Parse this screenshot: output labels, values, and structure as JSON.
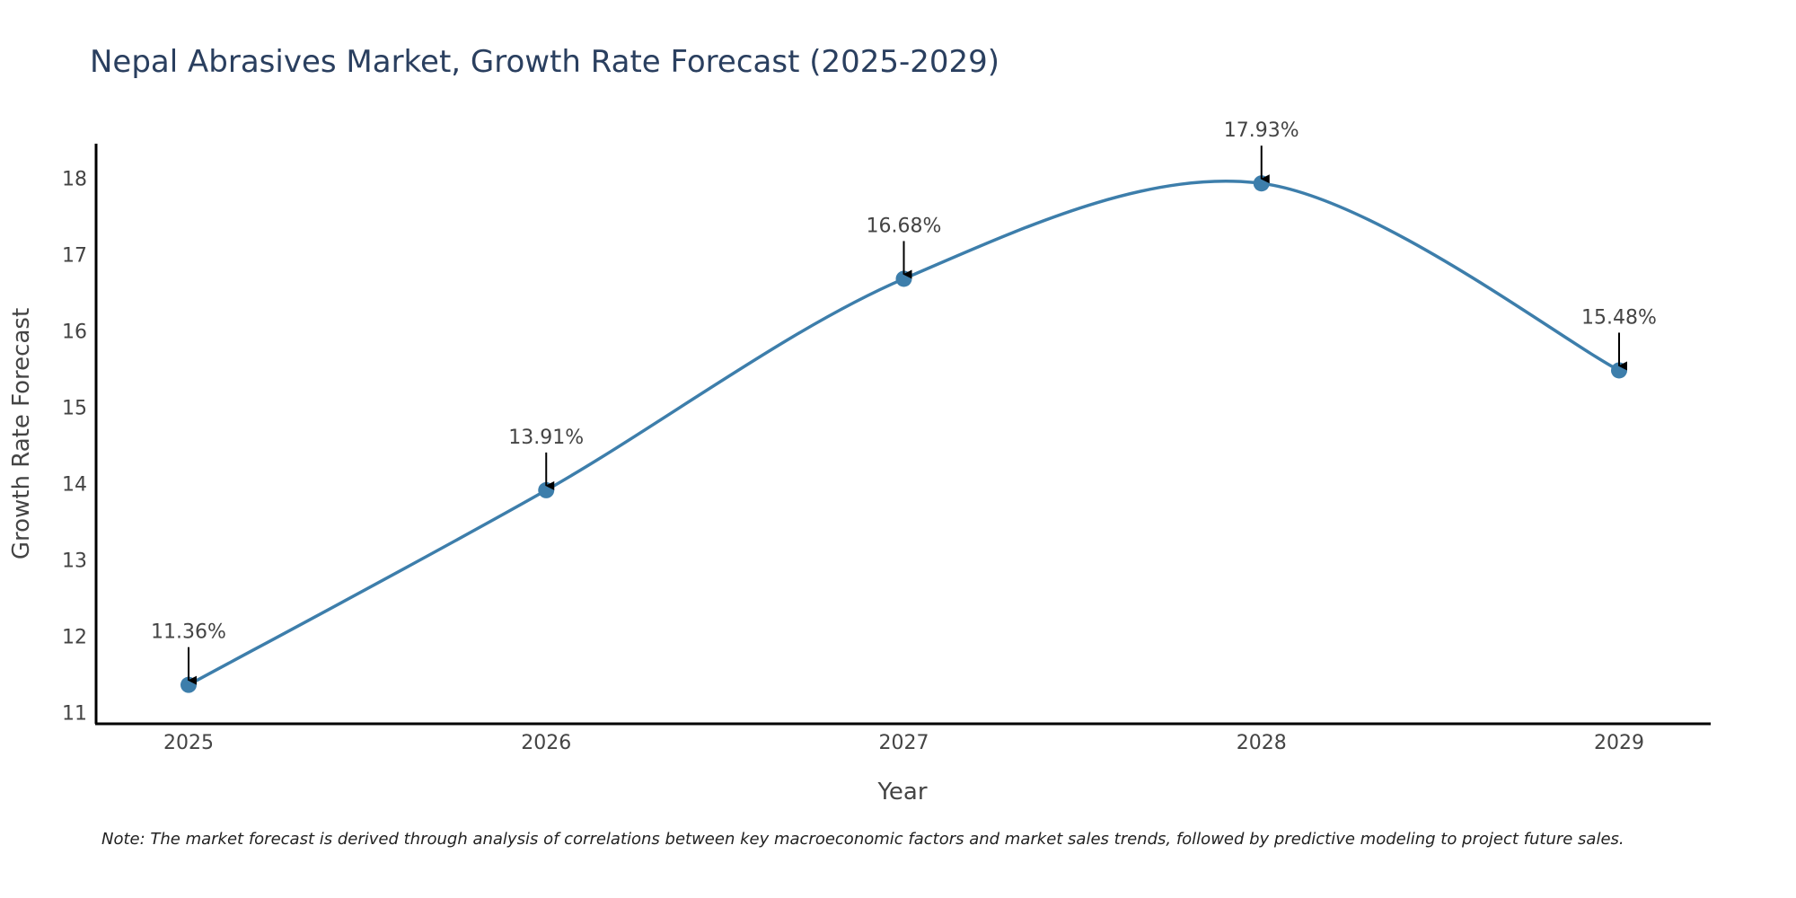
{
  "chart_data": {
    "type": "line",
    "title": "Nepal Abrasives Market, Growth Rate Forecast (2025-2029)",
    "xlabel": "Year",
    "ylabel": "Growth Rate Forecast",
    "categories": [
      "2025",
      "2026",
      "2027",
      "2028",
      "2029"
    ],
    "series": [
      {
        "name": "Growth Rate Forecast",
        "values": [
          11.36,
          13.91,
          16.68,
          17.93,
          15.48
        ],
        "color": "#3d7eab"
      }
    ],
    "data_labels": [
      "11.36%",
      "13.91%",
      "16.68%",
      "17.93%",
      "15.48%"
    ],
    "ylim": [
      10.85,
      18.45
    ],
    "yticks": [
      11,
      12,
      13,
      14,
      15,
      16,
      17,
      18
    ],
    "grid": false,
    "note": "Note: The market forecast is derived through analysis of correlations between key macroeconomic factors and market sales trends, followed by predictive modeling to project future sales."
  },
  "colors": {
    "line": "#3d7eab",
    "marker": "#3d7eab",
    "axis": "#000000",
    "arrow": "#000000",
    "title": "#2a3f5f"
  }
}
